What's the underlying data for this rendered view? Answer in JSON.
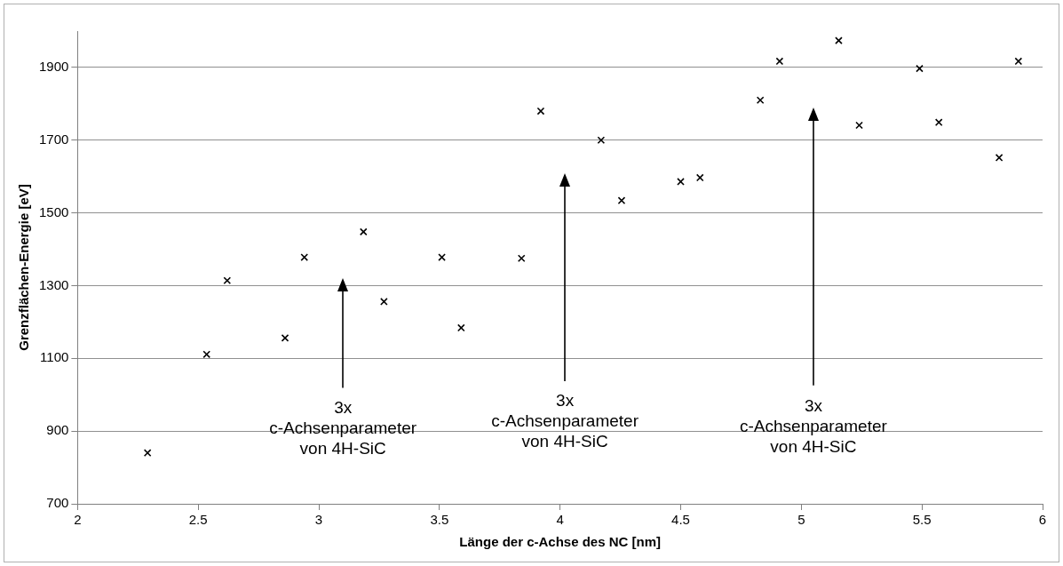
{
  "chart_data": {
    "type": "scatter",
    "xlabel": "Länge der c-Achse des NC [nm]",
    "ylabel": "Grenzflächen-Energie [eV]",
    "series": [
      {
        "color": "#000000",
        "x": [
          2.29,
          2.535,
          2.62,
          2.86,
          2.94,
          3.185,
          3.27,
          3.51,
          3.59,
          3.84,
          3.92,
          4.17,
          4.255,
          4.5,
          4.58,
          4.83,
          4.91,
          5.155,
          5.24,
          5.49,
          5.57,
          5.82,
          5.9
        ],
        "values": [
          840,
          1111,
          1314,
          1156,
          1378,
          1448,
          1256,
          1378,
          1184,
          1375,
          1780,
          1700,
          1534,
          1586,
          1597,
          1810,
          1917,
          1974,
          1741,
          1897,
          1749,
          1652,
          1917
        ]
      }
    ],
    "xlim": [
      2,
      6
    ],
    "xticks": [
      2,
      2.5,
      3,
      3.5,
      4,
      4.5,
      5,
      5.5,
      6
    ],
    "ylim": [
      700,
      2000
    ],
    "yticks": [
      700,
      900,
      1100,
      1300,
      1500,
      1700,
      1900
    ],
    "grid": "y",
    "legend": false,
    "marker": "cross",
    "annotations": [
      "3x\nc-Achsenparameter\nvon 4H-SiC",
      "3x\nc-Achsenparameter\nvon 4H-SiC",
      "3x\nc-Achsenparameter\nvon 4H-SiC"
    ]
  }
}
